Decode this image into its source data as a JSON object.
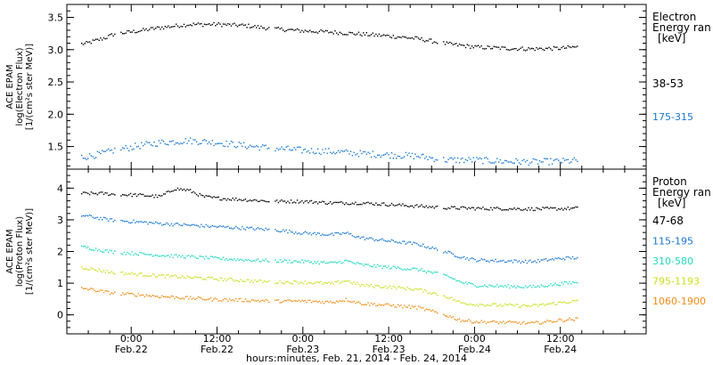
{
  "chart_data": [
    {
      "type": "scatter",
      "ylabel_lines": [
        "ACE EPAM",
        "log(Electron Flux)",
        "[1/(cm²s ster MeV)]"
      ],
      "ylim": [
        1.15,
        3.7
      ],
      "yticks": [
        "1.5",
        "2.0",
        "2.5",
        "3.0",
        "3.5"
      ],
      "ytick_values": [
        1.5,
        2.0,
        2.5,
        3.0,
        3.5
      ],
      "legend_title": [
        "Electron",
        "Energy ran",
        "[keV]"
      ],
      "series": [
        {
          "name": "38-53",
          "color": "#000000",
          "points": [
            [
              -6.5,
              3.1
            ],
            [
              -5,
              3.15
            ],
            [
              -3.5,
              3.2
            ],
            [
              -2.5,
              3.25
            ],
            [
              1,
              3.3
            ],
            [
              4,
              3.35
            ],
            [
              8,
              3.4
            ],
            [
              12,
              3.4
            ],
            [
              16,
              3.38
            ],
            [
              20,
              3.33
            ],
            [
              24,
              3.3
            ],
            [
              28,
              3.28
            ],
            [
              32,
              3.25
            ],
            [
              36,
              3.22
            ],
            [
              40,
              3.18
            ],
            [
              44,
              3.1
            ],
            [
              48,
              3.05
            ],
            [
              52,
              3.03
            ],
            [
              56,
              3.02
            ],
            [
              60,
              3.03
            ],
            [
              62,
              3.05
            ]
          ]
        },
        {
          "name": "175-315",
          "color": "#1a78d2",
          "points": [
            [
              -6.5,
              1.35
            ],
            [
              -4,
              1.4
            ],
            [
              -2.5,
              1.45
            ],
            [
              1,
              1.52
            ],
            [
              4,
              1.57
            ],
            [
              8,
              1.6
            ],
            [
              12,
              1.57
            ],
            [
              16,
              1.52
            ],
            [
              20,
              1.48
            ],
            [
              24,
              1.45
            ],
            [
              28,
              1.43
            ],
            [
              32,
              1.4
            ],
            [
              36,
              1.38
            ],
            [
              40,
              1.36
            ],
            [
              44,
              1.3
            ],
            [
              48,
              1.3
            ],
            [
              52,
              1.28
            ],
            [
              56,
              1.27
            ],
            [
              60,
              1.28
            ],
            [
              62,
              1.29
            ]
          ]
        }
      ]
    },
    {
      "type": "scatter",
      "ylabel_lines": [
        "ACE EPAM",
        "log(Proton Flux)",
        "[1/(cm²s ster MeV)]"
      ],
      "ylim": [
        -0.6,
        4.6
      ],
      "yticks": [
        "0",
        "1",
        "2",
        "3",
        "4"
      ],
      "ytick_values": [
        0,
        1,
        2,
        3,
        4
      ],
      "legend_title": [
        "Proton",
        "Energy ran",
        "[keV]"
      ],
      "series": [
        {
          "name": "47-68",
          "color": "#000000",
          "points": [
            [
              -6.5,
              3.85
            ],
            [
              -4,
              3.85
            ],
            [
              -2.5,
              3.82
            ],
            [
              1,
              3.8
            ],
            [
              4,
              3.75
            ],
            [
              6,
              4.0
            ],
            [
              8,
              3.95
            ],
            [
              10,
              3.75
            ],
            [
              12,
              3.7
            ],
            [
              16,
              3.65
            ],
            [
              20,
              3.6
            ],
            [
              24,
              3.6
            ],
            [
              28,
              3.55
            ],
            [
              32,
              3.55
            ],
            [
              36,
              3.5
            ],
            [
              40,
              3.45
            ],
            [
              44,
              3.4
            ],
            [
              48,
              3.38
            ],
            [
              52,
              3.37
            ],
            [
              56,
              3.36
            ],
            [
              60,
              3.37
            ],
            [
              62,
              3.38
            ]
          ]
        },
        {
          "name": "115-195",
          "color": "#1a78d2",
          "points": [
            [
              -6.5,
              3.15
            ],
            [
              -4,
              3.05
            ],
            [
              -2.5,
              3.0
            ],
            [
              1,
              2.95
            ],
            [
              4,
              2.9
            ],
            [
              8,
              2.85
            ],
            [
              12,
              2.8
            ],
            [
              16,
              2.75
            ],
            [
              20,
              2.7
            ],
            [
              24,
              2.6
            ],
            [
              28,
              2.55
            ],
            [
              30,
              2.6
            ],
            [
              32,
              2.45
            ],
            [
              36,
              2.35
            ],
            [
              40,
              2.25
            ],
            [
              44,
              2.0
            ],
            [
              46,
              1.85
            ],
            [
              48,
              1.75
            ],
            [
              52,
              1.72
            ],
            [
              56,
              1.7
            ],
            [
              60,
              1.8
            ],
            [
              62,
              1.82
            ]
          ]
        },
        {
          "name": "310-580",
          "color": "#20d8c0",
          "points": [
            [
              -6.5,
              2.15
            ],
            [
              -4,
              2.05
            ],
            [
              -2.5,
              2.0
            ],
            [
              1,
              1.95
            ],
            [
              4,
              1.9
            ],
            [
              8,
              1.85
            ],
            [
              12,
              1.8
            ],
            [
              16,
              1.75
            ],
            [
              20,
              1.72
            ],
            [
              24,
              1.7
            ],
            [
              28,
              1.65
            ],
            [
              30,
              1.72
            ],
            [
              32,
              1.6
            ],
            [
              36,
              1.52
            ],
            [
              40,
              1.45
            ],
            [
              44,
              1.25
            ],
            [
              46,
              1.05
            ],
            [
              48,
              0.95
            ],
            [
              52,
              0.92
            ],
            [
              56,
              0.9
            ],
            [
              60,
              1.0
            ],
            [
              62,
              1.05
            ]
          ]
        },
        {
          "name": "795-1193",
          "color": "#c8e020",
          "points": [
            [
              -6.5,
              1.5
            ],
            [
              -4,
              1.4
            ],
            [
              -2.5,
              1.35
            ],
            [
              1,
              1.3
            ],
            [
              4,
              1.25
            ],
            [
              8,
              1.2
            ],
            [
              12,
              1.15
            ],
            [
              16,
              1.1
            ],
            [
              20,
              1.05
            ],
            [
              24,
              1.05
            ],
            [
              28,
              1.0
            ],
            [
              30,
              1.1
            ],
            [
              32,
              0.95
            ],
            [
              36,
              0.9
            ],
            [
              40,
              0.82
            ],
            [
              44,
              0.6
            ],
            [
              46,
              0.4
            ],
            [
              48,
              0.35
            ],
            [
              52,
              0.32
            ],
            [
              56,
              0.3
            ],
            [
              60,
              0.4
            ],
            [
              62,
              0.45
            ]
          ]
        },
        {
          "name": "1060-1900",
          "color": "#f08c14",
          "points": [
            [
              -6.5,
              0.85
            ],
            [
              -4,
              0.75
            ],
            [
              -2.5,
              0.7
            ],
            [
              1,
              0.65
            ],
            [
              4,
              0.6
            ],
            [
              8,
              0.55
            ],
            [
              12,
              0.5
            ],
            [
              16,
              0.48
            ],
            [
              20,
              0.45
            ],
            [
              24,
              0.45
            ],
            [
              28,
              0.42
            ],
            [
              30,
              0.5
            ],
            [
              32,
              0.38
            ],
            [
              36,
              0.32
            ],
            [
              40,
              0.25
            ],
            [
              44,
              0.0
            ],
            [
              46,
              -0.15
            ],
            [
              48,
              -0.2
            ],
            [
              52,
              -0.22
            ],
            [
              56,
              -0.25
            ],
            [
              60,
              -0.15
            ],
            [
              62,
              -0.12
            ]
          ]
        }
      ]
    }
  ],
  "x_axis": {
    "xlim": [
      -9,
      72
    ],
    "gaps": [
      [
        -2.2,
        -1.6
      ],
      [
        19.2,
        19.9
      ],
      [
        42.8,
        43.4
      ]
    ],
    "major_ticks": [
      0,
      12,
      24,
      36,
      48,
      60
    ],
    "tick_labels": [
      [
        "0:00",
        "Feb.22"
      ],
      [
        "12:00",
        "Feb.22"
      ],
      [
        "0:00",
        "Feb.23"
      ],
      [
        "12:00",
        "Feb.23"
      ],
      [
        "0:00",
        "Feb.24"
      ],
      [
        "12:00",
        "Feb.24"
      ]
    ],
    "xlabel": "hours:minutes, Feb. 21, 2014 - Feb. 24, 2014"
  }
}
